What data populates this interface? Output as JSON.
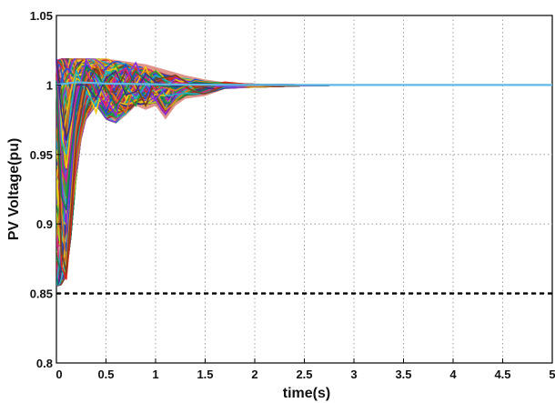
{
  "chart_data": {
    "type": "line",
    "title": "",
    "xlabel": "time(s)",
    "ylabel": "PV Voltage(pu)",
    "xlim": [
      0,
      5
    ],
    "ylim": [
      0.8,
      1.05
    ],
    "xticks": [
      "0",
      "0.5",
      "1",
      "1.5",
      "2",
      "2.5",
      "3",
      "3.5",
      "4",
      "4.5",
      "5"
    ],
    "yticks": [
      "0.8",
      "0.85",
      "0.9",
      "0.95",
      "1",
      "1.05"
    ],
    "grid": true,
    "envelope": {
      "description_values": "upper and lower bounds of the dense bundle of overlapping colored voltage trajectories",
      "x": [
        0,
        0.05,
        0.1,
        0.15,
        0.2,
        0.25,
        0.3,
        0.4,
        0.5,
        0.6,
        0.7,
        0.8,
        0.9,
        1.0,
        1.1,
        1.2,
        1.3,
        1.5,
        1.7,
        2.0,
        2.5,
        3.0,
        5.0
      ],
      "upper": [
        1.018,
        1.019,
        1.019,
        1.019,
        1.019,
        1.019,
        1.019,
        1.019,
        1.019,
        1.018,
        1.017,
        1.016,
        1.015,
        1.013,
        1.011,
        1.009,
        1.007,
        1.004,
        1.002,
        1.001,
        1.0005,
        1.0002,
        1.0
      ],
      "lower": [
        0.855,
        0.856,
        0.862,
        0.89,
        0.93,
        0.96,
        0.975,
        0.985,
        0.975,
        0.972,
        0.978,
        0.985,
        0.982,
        0.985,
        0.975,
        0.985,
        0.99,
        0.992,
        0.997,
        0.998,
        0.999,
        0.9995,
        1.0
      ]
    },
    "series": [
      {
        "color": "#e5261f",
        "x": [
          0,
          0.05,
          0.1,
          0.15,
          0.2,
          0.3,
          0.4,
          0.5,
          0.6,
          0.7,
          0.8,
          0.9,
          1.0,
          1.2,
          1.4,
          1.7,
          2.0,
          2.5,
          3.0,
          5.0
        ],
        "y": [
          1.01,
          0.87,
          0.86,
          0.9,
          0.95,
          0.99,
          1.01,
          1.005,
          0.985,
          1.0,
          1.012,
          0.995,
          0.998,
          1.006,
          0.999,
          1.002,
          1.0,
          1.0,
          1.0,
          1.0
        ]
      },
      {
        "color": "#1f4fd6",
        "x": [
          0,
          0.05,
          0.1,
          0.15,
          0.2,
          0.3,
          0.4,
          0.5,
          0.6,
          0.7,
          0.8,
          0.9,
          1.0,
          1.2,
          1.4,
          1.7,
          2.0,
          2.5,
          3.0,
          5.0
        ],
        "y": [
          1.0,
          0.9,
          0.88,
          0.93,
          0.98,
          1.015,
          1.0,
          0.98,
          1.0,
          1.015,
          1.0,
          0.99,
          1.008,
          0.997,
          1.004,
          0.999,
          1.0,
          1.0,
          1.0,
          1.0
        ]
      },
      {
        "color": "#21a336",
        "x": [
          0,
          0.05,
          0.1,
          0.15,
          0.2,
          0.3,
          0.4,
          0.5,
          0.6,
          0.7,
          0.8,
          0.9,
          1.0,
          1.2,
          1.4,
          1.7,
          2.0,
          2.5,
          3.0,
          5.0
        ],
        "y": [
          1.015,
          0.95,
          0.92,
          0.96,
          1.0,
          1.012,
          0.99,
          1.0,
          1.015,
          0.995,
          0.985,
          1.005,
          1.01,
          0.995,
          1.003,
          1.001,
          1.0,
          1.0,
          1.0,
          1.0
        ]
      },
      {
        "color": "#f2c80f",
        "x": [
          0,
          0.05,
          0.1,
          0.15,
          0.2,
          0.3,
          0.4,
          0.5,
          0.6,
          0.7,
          0.8,
          0.9,
          1.0,
          1.2,
          1.4,
          1.7,
          2.0,
          2.5,
          3.0,
          5.0
        ],
        "y": [
          1.005,
          0.97,
          0.94,
          0.97,
          1.005,
          1.0,
          0.98,
          1.01,
          1.012,
          0.99,
          1.0,
          1.013,
          0.995,
          1.004,
          0.998,
          1.001,
          1.0,
          1.0,
          1.0,
          1.0
        ]
      },
      {
        "color": "#8a2be2",
        "x": [
          0,
          0.05,
          0.1,
          0.15,
          0.2,
          0.3,
          0.4,
          0.5,
          0.6,
          0.7,
          0.8,
          0.9,
          1.0,
          1.2,
          1.4,
          1.7,
          2.0,
          2.5,
          3.0,
          5.0
        ],
        "y": [
          1.018,
          0.93,
          0.9,
          0.94,
          0.99,
          1.018,
          1.005,
          0.99,
          0.978,
          1.005,
          1.016,
          1.0,
          0.99,
          1.005,
          1.001,
          0.999,
          1.0,
          1.0,
          1.0,
          1.0
        ]
      },
      {
        "color": "#e07b18",
        "x": [
          0,
          0.05,
          0.1,
          0.15,
          0.2,
          0.3,
          0.4,
          0.5,
          0.6,
          0.7,
          0.8,
          0.9,
          1.0,
          1.2,
          1.4,
          1.7,
          2.0,
          2.5,
          3.0,
          5.0
        ],
        "y": [
          1.0,
          0.91,
          0.87,
          0.92,
          0.97,
          1.005,
          1.017,
          1.0,
          0.99,
          0.98,
          1.005,
          1.01,
          1.0,
          0.996,
          1.003,
          1.0,
          1.0,
          1.0,
          1.0,
          1.0
        ]
      },
      {
        "color": "#17b5c9",
        "x": [
          0,
          0.05,
          0.1,
          0.15,
          0.2,
          0.3,
          0.4,
          0.5,
          0.6,
          0.7,
          0.8,
          0.9,
          1.0,
          1.2,
          1.4,
          1.7,
          2.0,
          2.5,
          3.0,
          5.0
        ],
        "y": [
          1.012,
          0.96,
          0.95,
          0.985,
          1.01,
          0.995,
          0.985,
          1.01,
          1.005,
          1.0,
          0.99,
          1.0,
          1.007,
          1.0,
          1.002,
          1.0,
          1.0,
          1.0,
          1.0,
          1.0
        ]
      },
      {
        "color": "#7a3e1d",
        "x": [
          0,
          0.05,
          0.1,
          0.15,
          0.2,
          0.3,
          0.4,
          0.5,
          0.6,
          0.7,
          0.8,
          0.9,
          1.0,
          1.2,
          1.4,
          1.7,
          2.0,
          2.5,
          3.0,
          5.0
        ],
        "y": [
          1.008,
          0.88,
          0.865,
          0.91,
          0.96,
          1.0,
          1.012,
          0.995,
          0.995,
          1.01,
          1.0,
          0.985,
          1.004,
          1.007,
          0.998,
          1.001,
          1.0,
          1.0,
          1.0,
          1.0
        ]
      },
      {
        "color": "#d61f8a",
        "x": [
          0,
          0.05,
          0.1,
          0.15,
          0.2,
          0.3,
          0.4,
          0.5,
          0.6,
          0.7,
          0.8,
          0.9,
          1.0,
          1.2,
          1.4,
          1.7,
          2.0,
          2.5,
          3.0,
          5.0
        ],
        "y": [
          1.017,
          0.94,
          0.93,
          0.96,
          0.995,
          1.01,
          0.995,
          0.985,
          1.008,
          1.012,
          0.995,
          1.006,
          0.996,
          1.002,
          1.0,
          1.0,
          1.0,
          1.0,
          1.0,
          1.0
        ]
      },
      {
        "color": "#0d7d54",
        "x": [
          0,
          0.05,
          0.1,
          0.15,
          0.2,
          0.3,
          0.4,
          0.5,
          0.6,
          0.7,
          0.8,
          0.9,
          1.0,
          1.2,
          1.4,
          1.7,
          2.0,
          2.5,
          3.0,
          5.0
        ],
        "y": [
          1.003,
          0.92,
          0.91,
          0.95,
          0.985,
          1.013,
          1.008,
          0.998,
          0.985,
          0.995,
          1.01,
          1.003,
          1.0,
          0.998,
          1.002,
          1.0,
          1.0,
          1.0,
          1.0,
          1.0
        ]
      },
      {
        "color": "#3a2a8f",
        "x": [
          0,
          0.05,
          0.1,
          0.15,
          0.2,
          0.3,
          0.4,
          0.5,
          0.6,
          0.7,
          0.8,
          0.9,
          1.0,
          1.2,
          1.4,
          1.7,
          2.0,
          2.5,
          3.0,
          5.0
        ],
        "y": [
          1.019,
          0.98,
          0.96,
          0.975,
          1.0,
          1.0,
          0.99,
          1.005,
          1.01,
          0.993,
          0.995,
          1.008,
          1.002,
          0.999,
          1.001,
          1.0,
          1.0,
          1.0,
          1.0,
          1.0
        ]
      },
      {
        "color": "#5fb8e6",
        "x": [
          0,
          0.2,
          0.5,
          1.0,
          1.5,
          2.0,
          2.5,
          3.0,
          5.0
        ],
        "y": [
          1.0,
          1.002,
          1.001,
          1.0005,
          1.0002,
          1.0,
          1.0,
          1.0,
          1.0
        ]
      }
    ],
    "threshold": {
      "y": 0.85,
      "style": "dashed",
      "color": "#000000"
    }
  }
}
